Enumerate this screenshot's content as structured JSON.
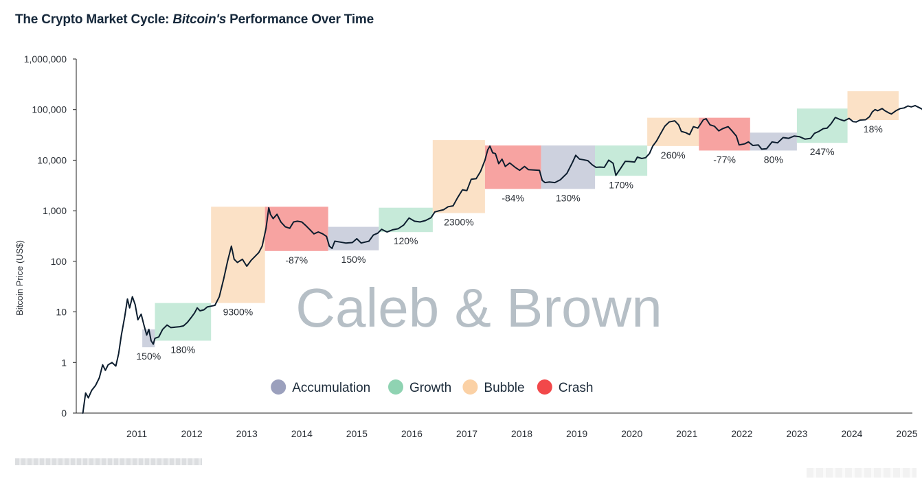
{
  "title": {
    "prefix": "The Crypto Market Cycle: ",
    "emphasis": "Bitcoin's",
    "suffix": " Performance Over Time"
  },
  "watermark": "Caleb & Brown",
  "colors": {
    "accumulation": "#cdd1de",
    "growth": "#c6ead9",
    "bubble": "#fbe1c6",
    "crash": "#f7a3a1",
    "legend_accumulation": "#9ba0bd",
    "legend_growth": "#8fd3b2",
    "legend_bubble": "#fbd1a5",
    "legend_crash": "#f2484a",
    "line": "#0c1d2e",
    "axis": "#222222",
    "watermark": "#b6bfc6"
  },
  "chart_data": {
    "type": "line",
    "title": "The Crypto Market Cycle: Bitcoin's Performance Over Time",
    "xlabel": "",
    "ylabel": "Bitcoin Price (US$)",
    "y_scale": "log",
    "y_ticks": [
      {
        "value": 0.1,
        "label": "0"
      },
      {
        "value": 1,
        "label": "1"
      },
      {
        "value": 10,
        "label": "10"
      },
      {
        "value": 100,
        "label": "100"
      },
      {
        "value": 1000,
        "label": "1,000"
      },
      {
        "value": 10000,
        "label": "10,000"
      },
      {
        "value": 100000,
        "label": "100,000"
      },
      {
        "value": 1000000,
        "label": "1,000,000"
      }
    ],
    "x_ticks": [
      "2011",
      "2012",
      "2013",
      "2014",
      "2015",
      "2016",
      "2017",
      "2018",
      "2019",
      "2020",
      "2021",
      "2022",
      "2023",
      "2024",
      "2025"
    ],
    "xlim": [
      2010.4,
      2025.6
    ],
    "ylim": [
      0.1,
      1000000
    ],
    "legend": {
      "placement": "bottom-center",
      "entries": [
        {
          "key": "accumulation",
          "label": "Accumulation"
        },
        {
          "key": "growth",
          "label": "Growth"
        },
        {
          "key": "bubble",
          "label": "Bubble"
        },
        {
          "key": "crash",
          "label": "Crash"
        }
      ]
    },
    "phases": [
      {
        "phase": "accumulation",
        "x0": 2011.6,
        "x1": 2011.83,
        "y_low": 2,
        "y_high": 4.5,
        "label": "150%"
      },
      {
        "phase": "growth",
        "x0": 2011.83,
        "x1": 2012.85,
        "y_low": 2.7,
        "y_high": 15,
        "label": "180%"
      },
      {
        "phase": "bubble",
        "x0": 2012.85,
        "x1": 2013.83,
        "y_low": 15,
        "y_high": 1200,
        "label": "9300%"
      },
      {
        "phase": "crash",
        "x0": 2013.83,
        "x1": 2014.98,
        "y_low": 160,
        "y_high": 1200,
        "label": "-87%"
      },
      {
        "phase": "accumulation",
        "x0": 2014.98,
        "x1": 2015.9,
        "y_low": 165,
        "y_high": 480,
        "label": "150%"
      },
      {
        "phase": "growth",
        "x0": 2015.9,
        "x1": 2016.88,
        "y_low": 380,
        "y_high": 1150,
        "label": "120%"
      },
      {
        "phase": "bubble",
        "x0": 2016.88,
        "x1": 2017.83,
        "y_low": 900,
        "y_high": 25000,
        "label": "2300%"
      },
      {
        "phase": "crash",
        "x0": 2017.83,
        "x1": 2018.85,
        "y_low": 2700,
        "y_high": 19500,
        "label": "-84%"
      },
      {
        "phase": "accumulation",
        "x0": 2018.85,
        "x1": 2019.83,
        "y_low": 2700,
        "y_high": 19500,
        "label": "130%"
      },
      {
        "phase": "growth",
        "x0": 2019.83,
        "x1": 2020.78,
        "y_low": 4900,
        "y_high": 19500,
        "label": "170%"
      },
      {
        "phase": "bubble",
        "x0": 2020.78,
        "x1": 2021.72,
        "y_low": 19000,
        "y_high": 69000,
        "label": "260%"
      },
      {
        "phase": "crash",
        "x0": 2021.72,
        "x1": 2022.65,
        "y_low": 15500,
        "y_high": 69000,
        "label": "-77%"
      },
      {
        "phase": "accumulation",
        "x0": 2022.65,
        "x1": 2023.5,
        "y_low": 15500,
        "y_high": 35000,
        "label": "80%"
      },
      {
        "phase": "growth",
        "x0": 2023.5,
        "x1": 2024.42,
        "y_low": 22000,
        "y_high": 105000,
        "label": "247%"
      },
      {
        "phase": "bubble",
        "x0": 2024.42,
        "x1": 2025.35,
        "y_low": 62000,
        "y_high": 230000,
        "label": "18%"
      }
    ],
    "series": [
      {
        "values": [
          [
            2010.52,
            0.1
          ],
          [
            2010.57,
            0.25
          ],
          [
            2010.62,
            0.2
          ],
          [
            2010.68,
            0.28
          ],
          [
            2010.75,
            0.35
          ],
          [
            2010.82,
            0.5
          ],
          [
            2010.88,
            0.9
          ],
          [
            2010.93,
            0.7
          ],
          [
            2010.98,
            0.9
          ],
          [
            2011.05,
            1.0
          ],
          [
            2011.12,
            0.85
          ],
          [
            2011.17,
            1.5
          ],
          [
            2011.22,
            3.5
          ],
          [
            2011.28,
            8
          ],
          [
            2011.33,
            18
          ],
          [
            2011.37,
            12
          ],
          [
            2011.42,
            20
          ],
          [
            2011.47,
            14
          ],
          [
            2011.52,
            7
          ],
          [
            2011.58,
            9
          ],
          [
            2011.63,
            5.5
          ],
          [
            2011.68,
            3.5
          ],
          [
            2011.72,
            4.5
          ],
          [
            2011.76,
            2.7
          ],
          [
            2011.8,
            2.3
          ],
          [
            2011.83,
            3
          ],
          [
            2011.9,
            3.2
          ],
          [
            2011.97,
            4.5
          ],
          [
            2012.05,
            5.5
          ],
          [
            2012.12,
            4.9
          ],
          [
            2012.2,
            5
          ],
          [
            2012.28,
            5.1
          ],
          [
            2012.35,
            5.3
          ],
          [
            2012.42,
            6.2
          ],
          [
            2012.5,
            8
          ],
          [
            2012.55,
            9.5
          ],
          [
            2012.6,
            12
          ],
          [
            2012.65,
            10.5
          ],
          [
            2012.72,
            11
          ],
          [
            2012.78,
            12.5
          ],
          [
            2012.85,
            13
          ],
          [
            2012.92,
            13.5
          ],
          [
            2013.0,
            20
          ],
          [
            2013.08,
            45
          ],
          [
            2013.15,
            100
          ],
          [
            2013.22,
            200
          ],
          [
            2013.27,
            110
          ],
          [
            2013.33,
            95
          ],
          [
            2013.42,
            110
          ],
          [
            2013.5,
            80
          ],
          [
            2013.58,
            105
          ],
          [
            2013.65,
            125
          ],
          [
            2013.72,
            150
          ],
          [
            2013.78,
            200
          ],
          [
            2013.85,
            450
          ],
          [
            2013.9,
            1150
          ],
          [
            2013.93,
            850
          ],
          [
            2013.98,
            700
          ],
          [
            2014.05,
            850
          ],
          [
            2014.12,
            600
          ],
          [
            2014.2,
            480
          ],
          [
            2014.28,
            450
          ],
          [
            2014.35,
            600
          ],
          [
            2014.42,
            620
          ],
          [
            2014.5,
            600
          ],
          [
            2014.58,
            500
          ],
          [
            2014.65,
            420
          ],
          [
            2014.72,
            350
          ],
          [
            2014.8,
            380
          ],
          [
            2014.88,
            350
          ],
          [
            2014.95,
            310
          ],
          [
            2015.0,
            200
          ],
          [
            2015.05,
            180
          ],
          [
            2015.1,
            250
          ],
          [
            2015.2,
            240
          ],
          [
            2015.3,
            230
          ],
          [
            2015.42,
            235
          ],
          [
            2015.5,
            280
          ],
          [
            2015.58,
            230
          ],
          [
            2015.65,
            240
          ],
          [
            2015.72,
            250
          ],
          [
            2015.8,
            330
          ],
          [
            2015.88,
            360
          ],
          [
            2015.95,
            430
          ],
          [
            2016.05,
            380
          ],
          [
            2016.15,
            420
          ],
          [
            2016.25,
            440
          ],
          [
            2016.35,
            520
          ],
          [
            2016.45,
            720
          ],
          [
            2016.55,
            620
          ],
          [
            2016.65,
            600
          ],
          [
            2016.75,
            640
          ],
          [
            2016.85,
            730
          ],
          [
            2016.92,
            950
          ],
          [
            2017.0,
            1000
          ],
          [
            2017.08,
            1050
          ],
          [
            2017.16,
            1200
          ],
          [
            2017.25,
            1250
          ],
          [
            2017.33,
            1800
          ],
          [
            2017.42,
            2600
          ],
          [
            2017.5,
            2500
          ],
          [
            2017.58,
            4200
          ],
          [
            2017.67,
            4300
          ],
          [
            2017.75,
            6000
          ],
          [
            2017.83,
            10000
          ],
          [
            2017.88,
            16000
          ],
          [
            2017.92,
            19000
          ],
          [
            2017.97,
            14000
          ],
          [
            2018.02,
            13500
          ],
          [
            2018.08,
            8500
          ],
          [
            2018.14,
            10500
          ],
          [
            2018.2,
            7500
          ],
          [
            2018.28,
            8800
          ],
          [
            2018.38,
            7200
          ],
          [
            2018.46,
            6300
          ],
          [
            2018.55,
            7500
          ],
          [
            2018.62,
            6500
          ],
          [
            2018.72,
            6400
          ],
          [
            2018.82,
            6300
          ],
          [
            2018.87,
            4000
          ],
          [
            2018.92,
            3600
          ],
          [
            2019.0,
            3700
          ],
          [
            2019.1,
            3600
          ],
          [
            2019.2,
            4100
          ],
          [
            2019.32,
            5500
          ],
          [
            2019.42,
            9000
          ],
          [
            2019.48,
            12500
          ],
          [
            2019.55,
            10500
          ],
          [
            2019.62,
            10200
          ],
          [
            2019.7,
            9800
          ],
          [
            2019.78,
            8100
          ],
          [
            2019.85,
            7200
          ],
          [
            2019.92,
            7300
          ],
          [
            2020.0,
            7200
          ],
          [
            2020.08,
            10000
          ],
          [
            2020.16,
            8700
          ],
          [
            2020.21,
            5000
          ],
          [
            2020.3,
            7000
          ],
          [
            2020.38,
            9500
          ],
          [
            2020.45,
            9400
          ],
          [
            2020.55,
            9200
          ],
          [
            2020.6,
            11500
          ],
          [
            2020.68,
            10800
          ],
          [
            2020.75,
            11200
          ],
          [
            2020.82,
            13500
          ],
          [
            2020.88,
            19000
          ],
          [
            2020.95,
            24000
          ],
          [
            2021.02,
            33000
          ],
          [
            2021.1,
            47000
          ],
          [
            2021.18,
            57000
          ],
          [
            2021.28,
            60000
          ],
          [
            2021.35,
            50000
          ],
          [
            2021.4,
            37000
          ],
          [
            2021.48,
            35000
          ],
          [
            2021.55,
            32000
          ],
          [
            2021.62,
            46000
          ],
          [
            2021.7,
            43000
          ],
          [
            2021.8,
            63000
          ],
          [
            2021.85,
            66000
          ],
          [
            2021.92,
            50000
          ],
          [
            2022.0,
            47000
          ],
          [
            2022.08,
            38000
          ],
          [
            2022.15,
            42000
          ],
          [
            2022.25,
            46000
          ],
          [
            2022.32,
            38000
          ],
          [
            2022.4,
            30000
          ],
          [
            2022.45,
            20000
          ],
          [
            2022.55,
            21000
          ],
          [
            2022.62,
            23000
          ],
          [
            2022.7,
            19500
          ],
          [
            2022.8,
            20000
          ],
          [
            2022.86,
            16500
          ],
          [
            2022.95,
            16800
          ],
          [
            2023.05,
            23000
          ],
          [
            2023.15,
            22000
          ],
          [
            2023.25,
            28000
          ],
          [
            2023.35,
            27000
          ],
          [
            2023.45,
            30000
          ],
          [
            2023.55,
            29000
          ],
          [
            2023.65,
            26000
          ],
          [
            2023.75,
            27000
          ],
          [
            2023.82,
            34000
          ],
          [
            2023.9,
            37000
          ],
          [
            2023.98,
            42000
          ],
          [
            2024.05,
            43000
          ],
          [
            2024.12,
            52000
          ],
          [
            2024.2,
            70000
          ],
          [
            2024.28,
            64000
          ],
          [
            2024.36,
            60000
          ],
          [
            2024.45,
            67000
          ],
          [
            2024.52,
            58000
          ],
          [
            2024.58,
            57000
          ],
          [
            2024.65,
            62000
          ],
          [
            2024.75,
            63000
          ],
          [
            2024.82,
            72000
          ],
          [
            2024.87,
            90000
          ],
          [
            2024.92,
            100000
          ],
          [
            2024.97,
            95000
          ],
          [
            2025.05,
            105000
          ],
          [
            2025.1,
            95000
          ],
          [
            2025.18,
            85000
          ],
          [
            2025.22,
            82000
          ],
          [
            2025.3,
            95000
          ],
          [
            2025.38,
            105000
          ],
          [
            2025.45,
            108000
          ],
          [
            2025.52,
            118000
          ],
          [
            2025.58,
            113000
          ],
          [
            2025.65,
            120000
          ],
          [
            2025.72,
            110000
          ],
          [
            2025.78,
            102000
          ],
          [
            2025.8,
            88000
          ]
        ]
      }
    ]
  }
}
